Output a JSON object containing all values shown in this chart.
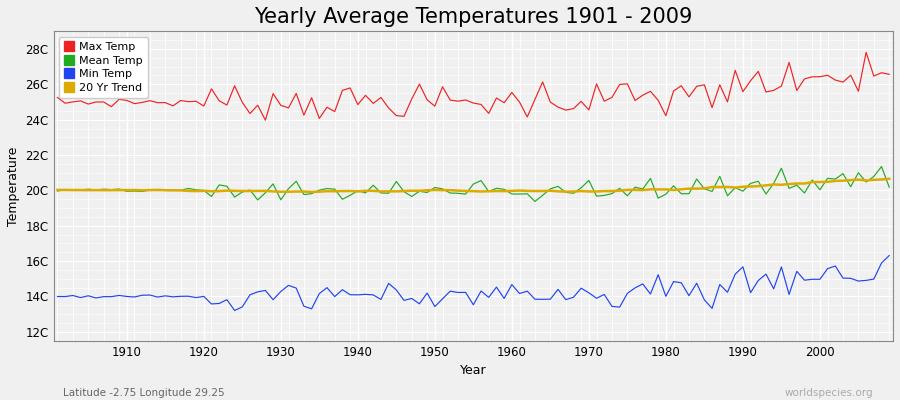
{
  "title": "Yearly Average Temperatures 1901 - 2009",
  "xlabel": "Year",
  "ylabel": "Temperature",
  "x_start": 1901,
  "x_end": 2009,
  "yticks": [
    12,
    14,
    16,
    18,
    20,
    22,
    24,
    26,
    28
  ],
  "ytick_labels": [
    "12C",
    "14C",
    "16C",
    "18C",
    "20C",
    "22C",
    "24C",
    "26C",
    "28C"
  ],
  "xticks": [
    1910,
    1920,
    1930,
    1940,
    1950,
    1960,
    1970,
    1980,
    1990,
    2000
  ],
  "ylim": [
    11.5,
    29.0
  ],
  "xlim": [
    1900.5,
    2009.5
  ],
  "legend_labels": [
    "Max Temp",
    "Mean Temp",
    "Min Temp",
    "20 Yr Trend"
  ],
  "line_colors": {
    "max": "#ee2222",
    "mean": "#22aa22",
    "min": "#2244ee",
    "trend": "#ddaa00"
  },
  "background_color": "#f0f0f0",
  "grid_color": "#ffffff",
  "subtitle": "Latitude -2.75 Longitude 29.25",
  "watermark": "worldspecies.org",
  "title_fontsize": 15,
  "label_fontsize": 9,
  "tick_fontsize": 8.5
}
